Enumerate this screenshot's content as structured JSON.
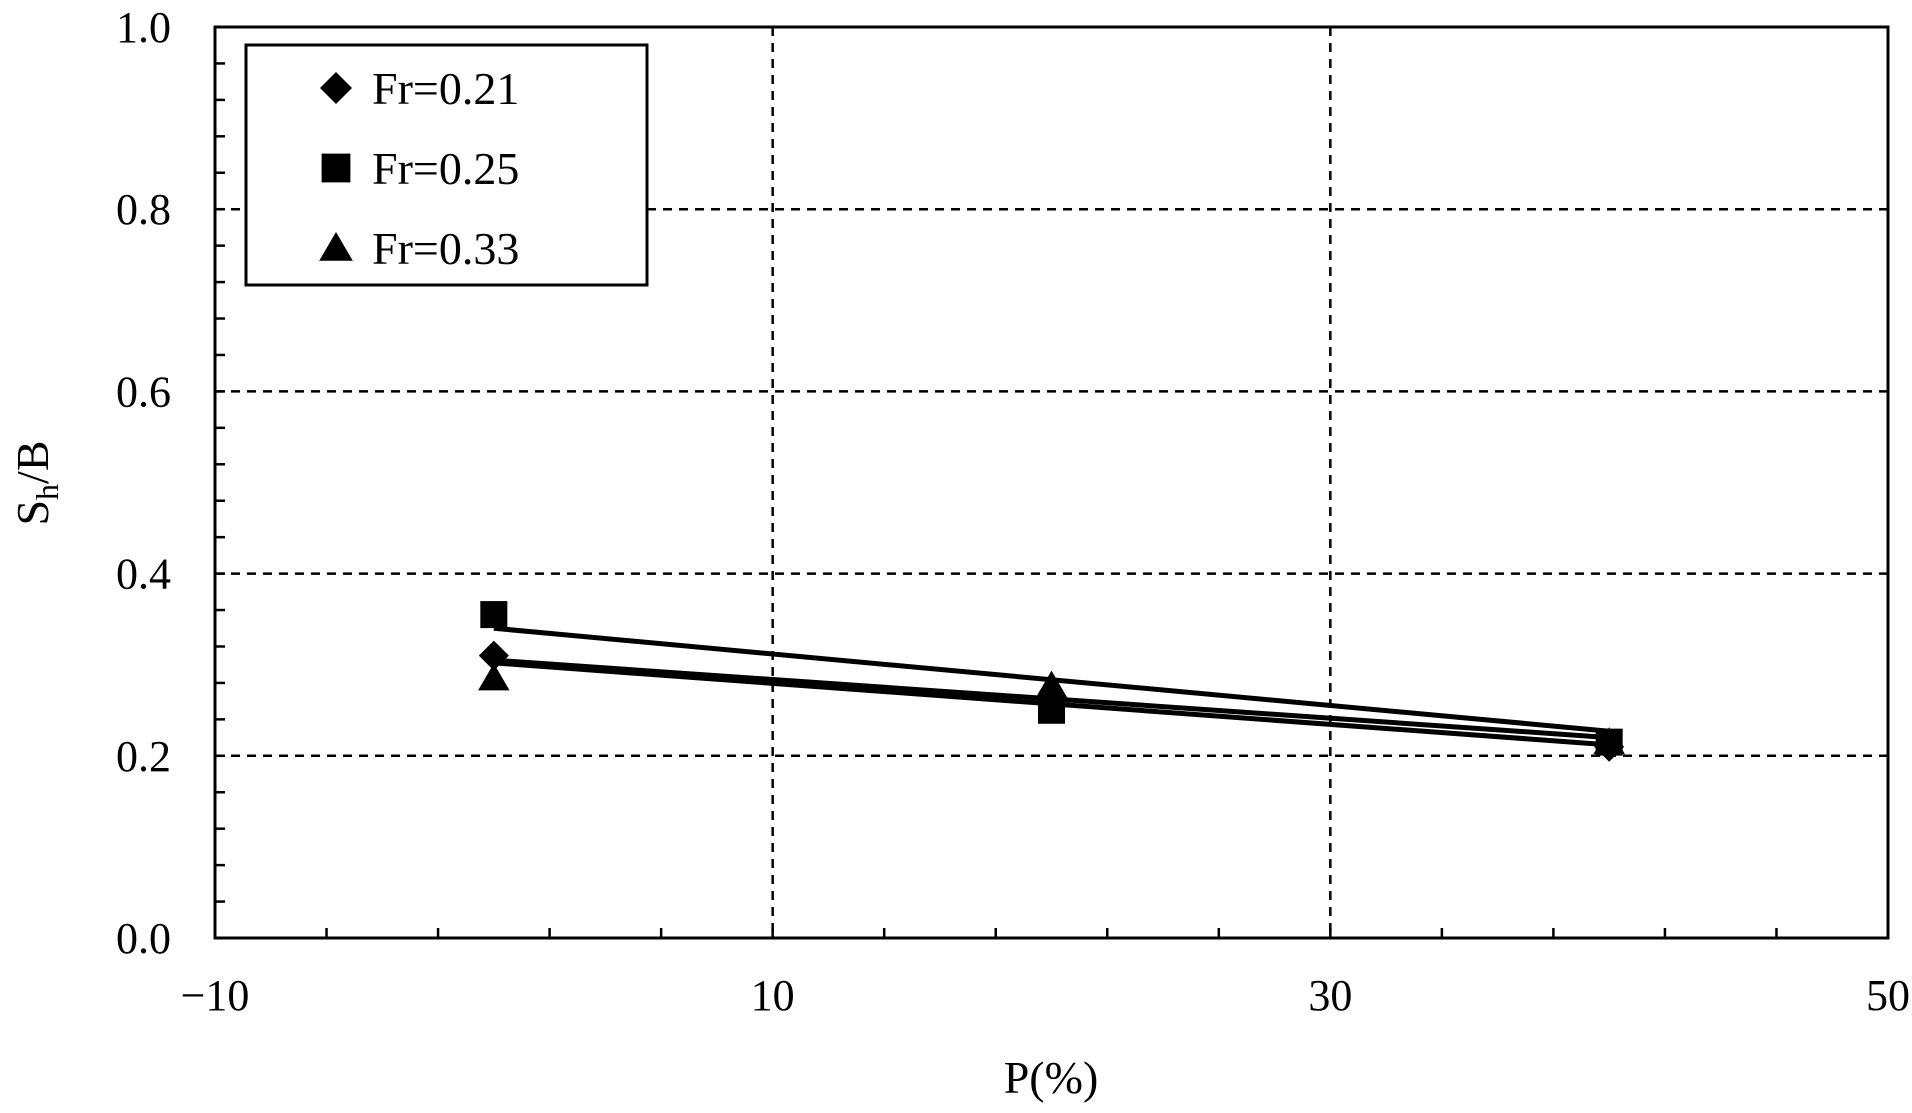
{
  "chart_data": {
    "type": "scatter",
    "title": "",
    "xlabel": "P(%)",
    "ylabel": {
      "main": "S",
      "sub": "h",
      "suffix": "/B"
    },
    "xlim": [
      -10,
      50
    ],
    "ylim": [
      0,
      1
    ],
    "x_ticks": [
      -10,
      10,
      30,
      50
    ],
    "x_tick_labels": [
      "−10",
      "10",
      "30",
      "50"
    ],
    "y_ticks": [
      0,
      0.2,
      0.4,
      0.6,
      0.8,
      1.0
    ],
    "y_tick_labels": [
      "0.0",
      "0.2",
      "0.4",
      "0.6",
      "0.8",
      "1.0"
    ],
    "x_minor_step": 4,
    "y_minor_step": 0.04,
    "grid": true,
    "grid_style": "dashed",
    "legend_position": "top-left",
    "series": [
      {
        "name": "Fr=0.21",
        "marker": "diamond",
        "x": [
          0,
          20,
          40
        ],
        "y": [
          0.31,
          0.262,
          0.21
        ],
        "fit_line": [
          [
            0,
            0.302
          ],
          [
            40,
            0.212
          ]
        ]
      },
      {
        "name": "Fr=0.25",
        "marker": "square",
        "x": [
          0,
          20,
          40
        ],
        "y": [
          0.355,
          0.25,
          0.215
        ],
        "fit_line": [
          [
            0,
            0.34
          ],
          [
            40,
            0.227
          ]
        ]
      },
      {
        "name": "Fr=0.33",
        "marker": "triangle",
        "x": [
          0,
          20,
          40
        ],
        "y": [
          0.285,
          0.277,
          0.215
        ],
        "fit_line": [
          [
            0,
            0.305
          ],
          [
            40,
            0.22
          ]
        ]
      }
    ],
    "colors": {
      "marks": "#000000",
      "background": "#ffffff",
      "grid": "#000000"
    }
  }
}
